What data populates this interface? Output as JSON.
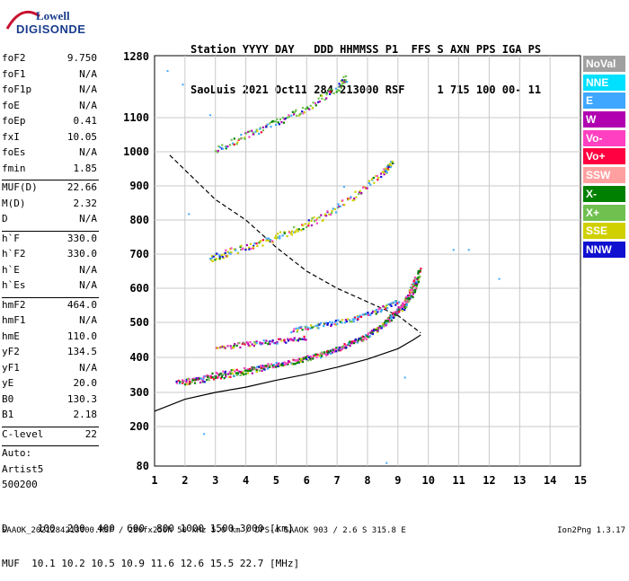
{
  "logo": {
    "line1": "Lowell",
    "line2": "DIGISONDE"
  },
  "header": {
    "line1": "Station YYYY DAY   DDD HHMMSS P1  FFS S AXN PPS IGA PS",
    "line2": "SaoLuis 2021 Oct11 284 213000 RSF     1 715 100 00- 11"
  },
  "params_groups": [
    [
      [
        "foF2",
        "9.750"
      ],
      [
        "foF1",
        "N/A"
      ],
      [
        "foF1p",
        "N/A"
      ],
      [
        "foE",
        "N/A"
      ],
      [
        "foEp",
        "0.41"
      ],
      [
        "fxI",
        "10.05"
      ],
      [
        "foEs",
        "N/A"
      ],
      [
        "fmin",
        "1.85"
      ]
    ],
    [
      [
        "MUF(D)",
        "22.66"
      ],
      [
        "M(D)",
        "2.32"
      ],
      [
        "D",
        "N/A"
      ]
    ],
    [
      [
        "h`F",
        "330.0"
      ],
      [
        "h`F2",
        "330.0"
      ],
      [
        "h`E",
        "N/A"
      ],
      [
        "h`Es",
        "N/A"
      ]
    ],
    [
      [
        "hmF2",
        "464.0"
      ],
      [
        "hmF1",
        "N/A"
      ],
      [
        "hmE",
        "110.0"
      ],
      [
        "yF2",
        "134.5"
      ],
      [
        "yF1",
        "N/A"
      ],
      [
        "yE",
        "20.0"
      ],
      [
        "B0",
        "130.3"
      ],
      [
        "B1",
        "2.18"
      ]
    ],
    [
      [
        "C-level",
        "22"
      ]
    ]
  ],
  "auto": [
    "Auto:",
    "Artist5",
    "500200"
  ],
  "legend": [
    {
      "label": "NoVal",
      "color": "#a0a0a0"
    },
    {
      "label": "NNE",
      "color": "#00e0ff"
    },
    {
      "label": "E",
      "color": "#3fa7ff"
    },
    {
      "label": "W",
      "color": "#b000b0"
    },
    {
      "label": "Vo-",
      "color": "#ff40c0"
    },
    {
      "label": "Vo+",
      "color": "#ff0040"
    },
    {
      "label": "SSW",
      "color": "#ffa0a0"
    },
    {
      "label": "X-",
      "color": "#008000"
    },
    {
      "label": "X+",
      "color": "#70c050"
    },
    {
      "label": "SSE",
      "color": "#d0d000"
    },
    {
      "label": "NNW",
      "color": "#1010d0"
    }
  ],
  "footer": {
    "line1": "D     100  200  400  600  800 1000 1500 3000 [km]",
    "line2": "MUF  10.1 10.2 10.5 10.9 11.6 12.6 15.5 22.7 [MHz]"
  },
  "status_line": "SAAOK_2021284213000.RSF / 280fx256h 50 kHz 5.0 km / DPS-4 SAAOK 903 / 2.6 S 315.8 E",
  "version": "Ion2Png 1.3.17",
  "chart_data": {
    "type": "scatter",
    "x_ticks": [
      1,
      2,
      3,
      4,
      5,
      6,
      7,
      8,
      9,
      10,
      11,
      12,
      13,
      14,
      15
    ],
    "y_ticks": [
      80,
      200,
      300,
      400,
      500,
      600,
      700,
      800,
      900,
      1000,
      1100,
      1280
    ],
    "xlim": [
      1,
      15
    ],
    "y_axis_note": "nonlinear height scale (km)",
    "grid": true,
    "series": [
      {
        "name": "O-trace main",
        "color": "#ff40c0",
        "points": [
          [
            1.7,
            330
          ],
          [
            2.5,
            345
          ],
          [
            3.5,
            360
          ],
          [
            4.5,
            375
          ],
          [
            5.5,
            390
          ],
          [
            6.5,
            410
          ],
          [
            7.3,
            435
          ],
          [
            8.0,
            465
          ],
          [
            8.6,
            505
          ],
          [
            9.0,
            540
          ],
          [
            9.3,
            575
          ],
          [
            9.55,
            630
          ]
        ]
      },
      {
        "name": "X-trace",
        "color": "#008000",
        "points": [
          [
            2.0,
            330
          ],
          [
            3.0,
            345
          ],
          [
            4.0,
            360
          ],
          [
            5.0,
            380
          ],
          [
            6.0,
            398
          ],
          [
            7.0,
            425
          ],
          [
            8.0,
            465
          ],
          [
            8.7,
            510
          ],
          [
            9.2,
            550
          ],
          [
            9.55,
            600
          ],
          [
            9.7,
            660
          ]
        ]
      },
      {
        "name": "E-direction upper trace",
        "color": "#3fa7ff",
        "points": [
          [
            5.5,
            480
          ],
          [
            6.5,
            495
          ],
          [
            7.5,
            510
          ],
          [
            8.3,
            535
          ],
          [
            9.0,
            565
          ]
        ]
      },
      {
        "name": "W-direction trace",
        "color": "#b000b0",
        "points": [
          [
            3.0,
            430
          ],
          [
            4.0,
            440
          ],
          [
            5.0,
            448
          ],
          [
            6.0,
            458
          ]
        ]
      },
      {
        "name": "Second hop",
        "color": "#d0d000",
        "points": [
          [
            2.8,
            690
          ],
          [
            3.5,
            710
          ],
          [
            4.5,
            735
          ],
          [
            5.5,
            770
          ],
          [
            6.5,
            810
          ],
          [
            7.5,
            870
          ],
          [
            8.5,
            940
          ],
          [
            8.8,
            975
          ]
        ]
      },
      {
        "name": "Third hop",
        "color": "#70c050",
        "points": [
          [
            3.0,
            1010
          ],
          [
            4.0,
            1050
          ],
          [
            5.0,
            1090
          ],
          [
            6.0,
            1130
          ],
          [
            7.0,
            1190
          ],
          [
            7.3,
            1220
          ]
        ]
      }
    ],
    "profile_curve": {
      "label": "electron density profile",
      "points": [
        [
          1,
          245
        ],
        [
          2,
          280
        ],
        [
          3,
          300
        ],
        [
          4,
          315
        ],
        [
          5,
          335
        ],
        [
          6,
          352
        ],
        [
          7,
          372
        ],
        [
          8,
          395
        ],
        [
          9,
          425
        ],
        [
          9.5,
          450
        ],
        [
          9.75,
          464
        ]
      ]
    },
    "muf_curve": {
      "label": "MUF curve",
      "points": [
        [
          1.5,
          990
        ],
        [
          3,
          860
        ],
        [
          4,
          800
        ],
        [
          5,
          720
        ],
        [
          6,
          650
        ],
        [
          7,
          600
        ],
        [
          8,
          560
        ],
        [
          9,
          520
        ],
        [
          9.75,
          470
        ]
      ]
    }
  }
}
